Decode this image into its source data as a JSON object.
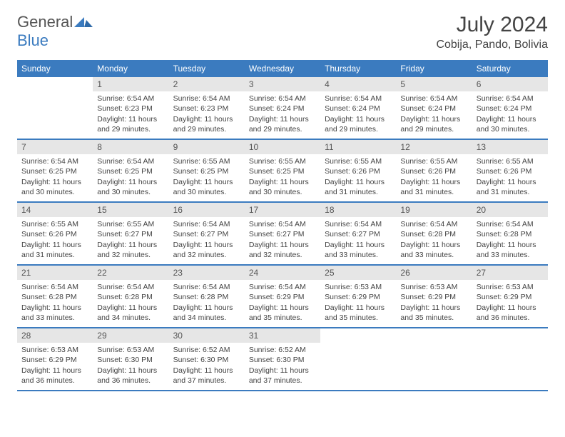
{
  "logo": {
    "general": "General",
    "blue": "Blue"
  },
  "title": "July 2024",
  "location": "Cobija, Pando, Bolivia",
  "colors": {
    "header_bar": "#3b7bbf",
    "daynum_bg": "#e6e6e6",
    "text": "#444444",
    "logo_blue": "#3b7bbf"
  },
  "weekdays": [
    "Sunday",
    "Monday",
    "Tuesday",
    "Wednesday",
    "Thursday",
    "Friday",
    "Saturday"
  ],
  "weeks": [
    [
      {
        "n": "",
        "lines": []
      },
      {
        "n": "1",
        "lines": [
          "Sunrise: 6:54 AM",
          "Sunset: 6:23 PM",
          "Daylight: 11 hours and 29 minutes."
        ]
      },
      {
        "n": "2",
        "lines": [
          "Sunrise: 6:54 AM",
          "Sunset: 6:23 PM",
          "Daylight: 11 hours and 29 minutes."
        ]
      },
      {
        "n": "3",
        "lines": [
          "Sunrise: 6:54 AM",
          "Sunset: 6:24 PM",
          "Daylight: 11 hours and 29 minutes."
        ]
      },
      {
        "n": "4",
        "lines": [
          "Sunrise: 6:54 AM",
          "Sunset: 6:24 PM",
          "Daylight: 11 hours and 29 minutes."
        ]
      },
      {
        "n": "5",
        "lines": [
          "Sunrise: 6:54 AM",
          "Sunset: 6:24 PM",
          "Daylight: 11 hours and 29 minutes."
        ]
      },
      {
        "n": "6",
        "lines": [
          "Sunrise: 6:54 AM",
          "Sunset: 6:24 PM",
          "Daylight: 11 hours and 30 minutes."
        ]
      }
    ],
    [
      {
        "n": "7",
        "lines": [
          "Sunrise: 6:54 AM",
          "Sunset: 6:25 PM",
          "Daylight: 11 hours and 30 minutes."
        ]
      },
      {
        "n": "8",
        "lines": [
          "Sunrise: 6:54 AM",
          "Sunset: 6:25 PM",
          "Daylight: 11 hours and 30 minutes."
        ]
      },
      {
        "n": "9",
        "lines": [
          "Sunrise: 6:55 AM",
          "Sunset: 6:25 PM",
          "Daylight: 11 hours and 30 minutes."
        ]
      },
      {
        "n": "10",
        "lines": [
          "Sunrise: 6:55 AM",
          "Sunset: 6:25 PM",
          "Daylight: 11 hours and 30 minutes."
        ]
      },
      {
        "n": "11",
        "lines": [
          "Sunrise: 6:55 AM",
          "Sunset: 6:26 PM",
          "Daylight: 11 hours and 31 minutes."
        ]
      },
      {
        "n": "12",
        "lines": [
          "Sunrise: 6:55 AM",
          "Sunset: 6:26 PM",
          "Daylight: 11 hours and 31 minutes."
        ]
      },
      {
        "n": "13",
        "lines": [
          "Sunrise: 6:55 AM",
          "Sunset: 6:26 PM",
          "Daylight: 11 hours and 31 minutes."
        ]
      }
    ],
    [
      {
        "n": "14",
        "lines": [
          "Sunrise: 6:55 AM",
          "Sunset: 6:26 PM",
          "Daylight: 11 hours and 31 minutes."
        ]
      },
      {
        "n": "15",
        "lines": [
          "Sunrise: 6:55 AM",
          "Sunset: 6:27 PM",
          "Daylight: 11 hours and 32 minutes."
        ]
      },
      {
        "n": "16",
        "lines": [
          "Sunrise: 6:54 AM",
          "Sunset: 6:27 PM",
          "Daylight: 11 hours and 32 minutes."
        ]
      },
      {
        "n": "17",
        "lines": [
          "Sunrise: 6:54 AM",
          "Sunset: 6:27 PM",
          "Daylight: 11 hours and 32 minutes."
        ]
      },
      {
        "n": "18",
        "lines": [
          "Sunrise: 6:54 AM",
          "Sunset: 6:27 PM",
          "Daylight: 11 hours and 33 minutes."
        ]
      },
      {
        "n": "19",
        "lines": [
          "Sunrise: 6:54 AM",
          "Sunset: 6:28 PM",
          "Daylight: 11 hours and 33 minutes."
        ]
      },
      {
        "n": "20",
        "lines": [
          "Sunrise: 6:54 AM",
          "Sunset: 6:28 PM",
          "Daylight: 11 hours and 33 minutes."
        ]
      }
    ],
    [
      {
        "n": "21",
        "lines": [
          "Sunrise: 6:54 AM",
          "Sunset: 6:28 PM",
          "Daylight: 11 hours and 33 minutes."
        ]
      },
      {
        "n": "22",
        "lines": [
          "Sunrise: 6:54 AM",
          "Sunset: 6:28 PM",
          "Daylight: 11 hours and 34 minutes."
        ]
      },
      {
        "n": "23",
        "lines": [
          "Sunrise: 6:54 AM",
          "Sunset: 6:28 PM",
          "Daylight: 11 hours and 34 minutes."
        ]
      },
      {
        "n": "24",
        "lines": [
          "Sunrise: 6:54 AM",
          "Sunset: 6:29 PM",
          "Daylight: 11 hours and 35 minutes."
        ]
      },
      {
        "n": "25",
        "lines": [
          "Sunrise: 6:53 AM",
          "Sunset: 6:29 PM",
          "Daylight: 11 hours and 35 minutes."
        ]
      },
      {
        "n": "26",
        "lines": [
          "Sunrise: 6:53 AM",
          "Sunset: 6:29 PM",
          "Daylight: 11 hours and 35 minutes."
        ]
      },
      {
        "n": "27",
        "lines": [
          "Sunrise: 6:53 AM",
          "Sunset: 6:29 PM",
          "Daylight: 11 hours and 36 minutes."
        ]
      }
    ],
    [
      {
        "n": "28",
        "lines": [
          "Sunrise: 6:53 AM",
          "Sunset: 6:29 PM",
          "Daylight: 11 hours and 36 minutes."
        ]
      },
      {
        "n": "29",
        "lines": [
          "Sunrise: 6:53 AM",
          "Sunset: 6:30 PM",
          "Daylight: 11 hours and 36 minutes."
        ]
      },
      {
        "n": "30",
        "lines": [
          "Sunrise: 6:52 AM",
          "Sunset: 6:30 PM",
          "Daylight: 11 hours and 37 minutes."
        ]
      },
      {
        "n": "31",
        "lines": [
          "Sunrise: 6:52 AM",
          "Sunset: 6:30 PM",
          "Daylight: 11 hours and 37 minutes."
        ]
      },
      {
        "n": "",
        "lines": []
      },
      {
        "n": "",
        "lines": []
      },
      {
        "n": "",
        "lines": []
      }
    ]
  ]
}
